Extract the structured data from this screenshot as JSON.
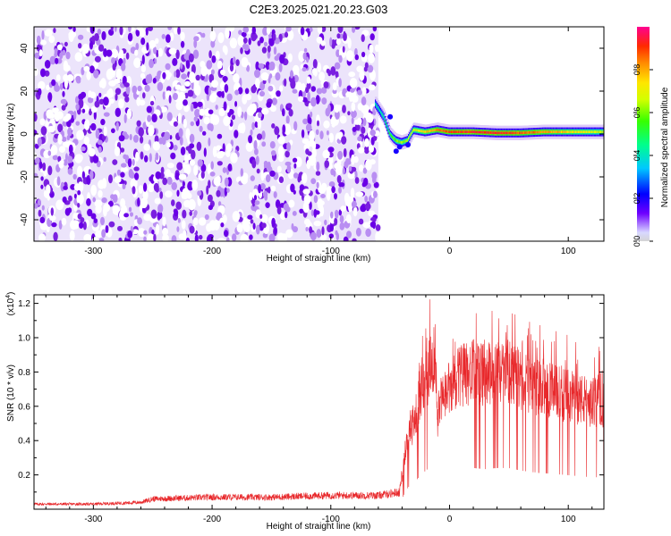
{
  "title": "C2E3.2025.021.20.23.G03",
  "colors": {
    "snr_line": "#e8282b",
    "speckle": "#8a2be2",
    "colorbar": [
      "#d4d4d4",
      "#d8d8ff",
      "#6e00ff",
      "#0000ff",
      "#00c8ff",
      "#00ff8c",
      "#37ff00",
      "#d2ff00",
      "#ffe600",
      "#ff8c00",
      "#ff2a00",
      "#ff0090"
    ]
  },
  "chart_data": [
    {
      "type": "heatmap",
      "xlabel": "Height of straight line (km)",
      "ylabel": "Frequency (Hz)",
      "xlim": [
        -350,
        130
      ],
      "ylim": [
        -50,
        50
      ],
      "xticks": [
        "-300",
        "-200",
        "-100",
        "0",
        "100"
      ],
      "yticks": [
        "40",
        "20",
        "0",
        "-20",
        "-40"
      ],
      "colorbar": {
        "label": "Normalized spectral amplitude",
        "range": [
          0,
          1
        ],
        "ticks": [
          "0.0",
          "0.2",
          "0.4",
          "0.6",
          "0.8"
        ]
      },
      "noise_region": [
        -350,
        -60
      ],
      "signal_track": [
        {
          "x": -62,
          "y": 14,
          "amp": 0.4
        },
        {
          "x": -55,
          "y": 8,
          "amp": 0.45
        },
        {
          "x": -50,
          "y": 0,
          "amp": 0.55
        },
        {
          "x": -45,
          "y": -3,
          "amp": 0.6
        },
        {
          "x": -40,
          "y": -4,
          "amp": 0.62
        },
        {
          "x": -35,
          "y": -3,
          "amp": 0.65
        },
        {
          "x": -30,
          "y": 2,
          "amp": 0.65
        },
        {
          "x": -20,
          "y": 1,
          "amp": 0.75
        },
        {
          "x": -10,
          "y": 2,
          "amp": 0.85
        },
        {
          "x": 0,
          "y": 1,
          "amp": 0.88
        },
        {
          "x": 20,
          "y": 1,
          "amp": 0.92
        },
        {
          "x": 40,
          "y": 0.5,
          "amp": 0.92
        },
        {
          "x": 60,
          "y": 0.5,
          "amp": 0.88
        },
        {
          "x": 80,
          "y": 1,
          "amp": 0.82
        },
        {
          "x": 100,
          "y": 1,
          "amp": 0.75
        },
        {
          "x": 130,
          "y": 1,
          "amp": 0.65
        }
      ]
    },
    {
      "type": "line",
      "xlabel": "Height of straight line (km)",
      "ylabel": "SNR (10 * v/v)",
      "y_multiplier": "(x10",
      "y_exponent": "4",
      "xlim": [
        -350,
        130
      ],
      "ylim": [
        0,
        1.25
      ],
      "xticks": [
        "-300",
        "-200",
        "-100",
        "0",
        "100"
      ],
      "yticks": [
        "1.2",
        "1.0",
        "0.8",
        "0.6",
        "0.4",
        "0.2"
      ],
      "series": [
        {
          "x": [
            -350,
            -300,
            -260,
            -250,
            -200,
            -150,
            -100,
            -60,
            -42,
            -38,
            -34,
            -30,
            -25,
            -20,
            -15,
            -12,
            -10,
            -8,
            -5,
            0,
            10,
            20,
            30,
            40,
            50,
            60,
            70,
            80,
            90,
            100,
            110,
            120,
            130
          ],
          "y": [
            0.03,
            0.03,
            0.04,
            0.06,
            0.07,
            0.07,
            0.08,
            0.08,
            0.1,
            0.3,
            0.45,
            0.5,
            0.65,
            0.75,
            0.85,
            0.9,
            0.55,
            0.6,
            0.65,
            0.7,
            0.78,
            0.8,
            0.78,
            0.8,
            0.8,
            0.75,
            0.72,
            0.7,
            0.68,
            0.66,
            0.64,
            0.62,
            0.62
          ]
        }
      ]
    }
  ]
}
